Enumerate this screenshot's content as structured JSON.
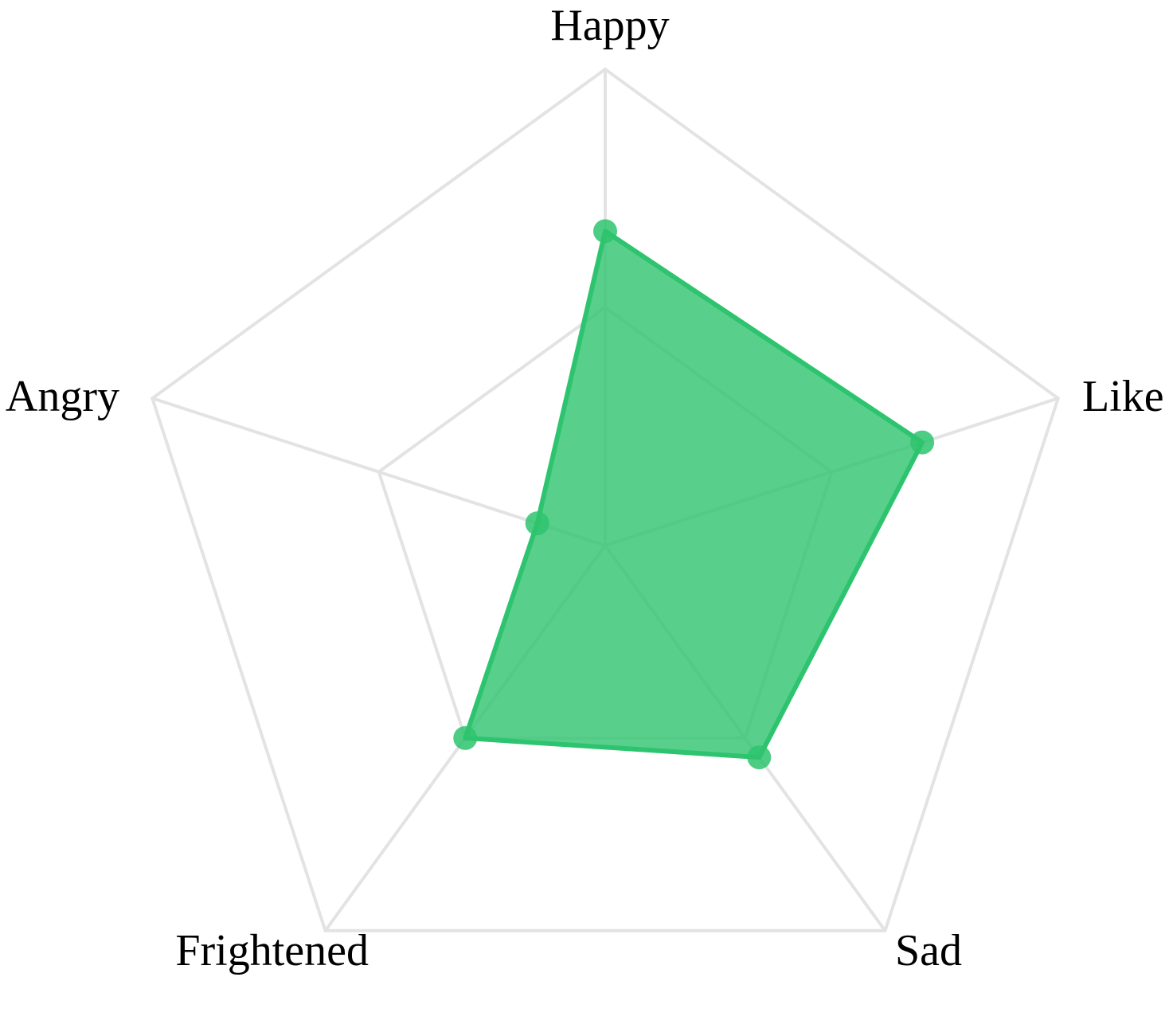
{
  "chart_data": {
    "type": "radar",
    "title": "",
    "indicators": [
      {
        "name": "Happy",
        "max": 100
      },
      {
        "name": "Like",
        "max": 100
      },
      {
        "name": "Sad",
        "max": 100
      },
      {
        "name": "Frightened",
        "max": 100
      },
      {
        "name": "Angry",
        "max": 100
      }
    ],
    "series": [
      {
        "values": [
          66,
          70,
          55,
          50,
          15
        ],
        "color": "#2ec46f"
      }
    ],
    "grid_rings": 2,
    "legend": "none",
    "colors": {
      "series": "#2ec46f",
      "grid": "#e3e3e3",
      "label": "#000000"
    }
  }
}
